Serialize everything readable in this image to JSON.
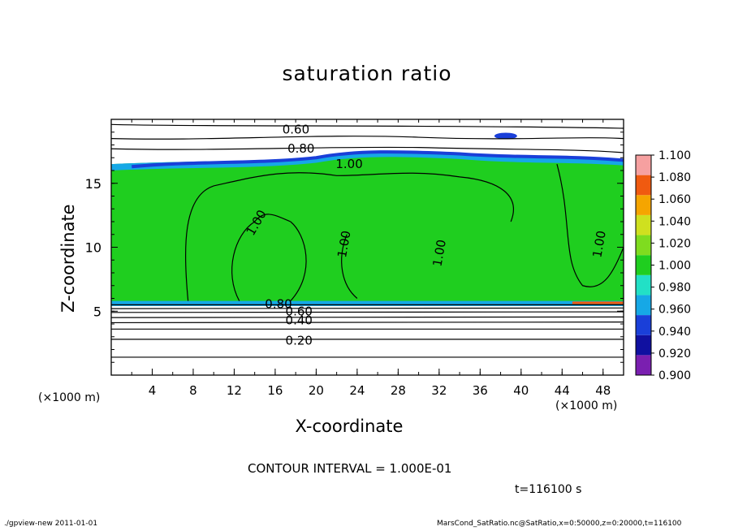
{
  "chart_data": {
    "type": "heatmap",
    "title": "saturation ratio",
    "xlabel": "X-coordinate",
    "ylabel": "Z-coordinate",
    "x_unit": "(×1000 m)",
    "x_unit_right": "(×1000 m)",
    "xlim": [
      0,
      50
    ],
    "ylim": [
      0,
      20
    ],
    "x_ticks": [
      4,
      8,
      12,
      16,
      20,
      24,
      28,
      32,
      36,
      40,
      44,
      48
    ],
    "y_ticks": [
      5,
      10,
      15
    ],
    "colorbar": {
      "levels": [
        "0.900",
        "0.920",
        "0.940",
        "0.960",
        "0.980",
        "1.000",
        "1.020",
        "1.040",
        "1.060",
        "1.080",
        "1.100"
      ],
      "colors": [
        "#7a1fb0",
        "#1010a0",
        "#1a3fd9",
        "#16a8e6",
        "#22e0c6",
        "#1fce1f",
        "#7fdc1f",
        "#cfe01f",
        "#f5a500",
        "#f05a10",
        "#f6a0a0"
      ]
    },
    "contour_labels": [
      "0.60",
      "0.80",
      "1.00",
      "1.00",
      "1.00",
      "1.00",
      "1.00",
      "0.80",
      "0.60",
      "0.40",
      "0.20"
    ],
    "contour_interval": "CONTOUR INTERVAL = 1.000E-01",
    "time": "t=116100 s"
  },
  "footer": {
    "left": "./gpview-new   2011-01-01",
    "right": "MarsCond_SatRatio.nc@SatRatio,x=0:50000,z=0:20000,t=116100"
  }
}
